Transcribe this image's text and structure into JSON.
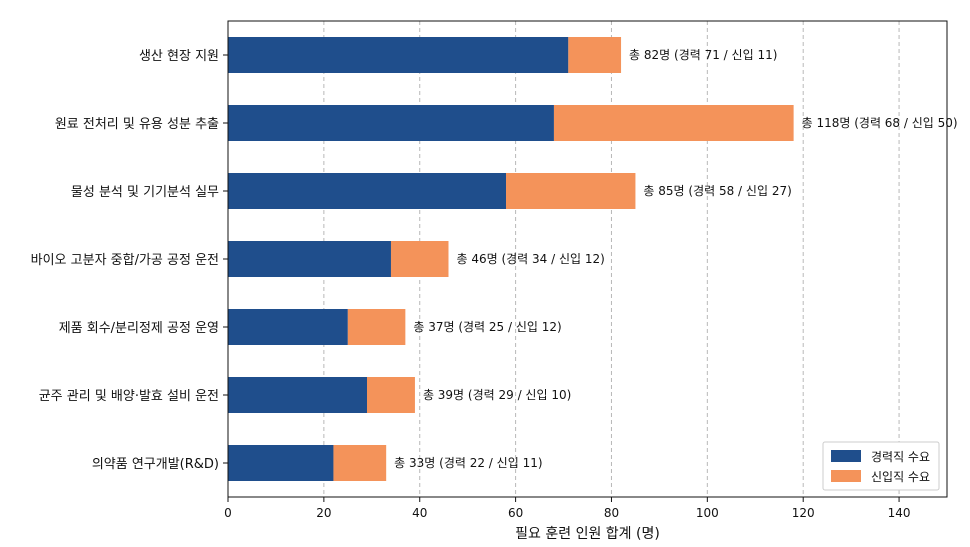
{
  "chart_data": {
    "type": "bar",
    "orientation": "horizontal",
    "stacked": true,
    "categories": [
      "생산 현장 지원",
      "원료 전처리 및 유용 성분 추출",
      "물성 분석 및 기기분석 실무",
      "바이오 고분자 중합/가공 공정 운전",
      "제품 회수/분리정제 공정 운영",
      "균주 관리 및 배양·발효 설비 운전",
      "의약품 연구개발(R&D)"
    ],
    "series": [
      {
        "name": "경력직 수요",
        "color": "#1f4e8c",
        "values": [
          71,
          68,
          58,
          34,
          25,
          29,
          22
        ]
      },
      {
        "name": "신입직 수요",
        "color": "#f4935a",
        "values": [
          11,
          50,
          27,
          12,
          12,
          10,
          11
        ]
      }
    ],
    "data_labels": [
      "총 82명 (경력 71 / 신입 11)",
      "총 118명 (경력 68 / 신입 50)",
      "총 85명 (경력 58 / 신입 27)",
      "총 46명 (경력 34 / 신입 12)",
      "총 37명 (경력 25 / 신입 12)",
      "총 39명 (경력 29 / 신입 10)",
      "총 33명 (경력 22 / 신입 11)"
    ],
    "xlabel": "필요 훈련 인원 합계 (명)",
    "ylabel": "",
    "xlim": [
      0,
      150
    ],
    "xticks": [
      0,
      20,
      40,
      60,
      80,
      100,
      120,
      140
    ],
    "grid": "x-dashed",
    "legend_position": "bottom-right"
  }
}
